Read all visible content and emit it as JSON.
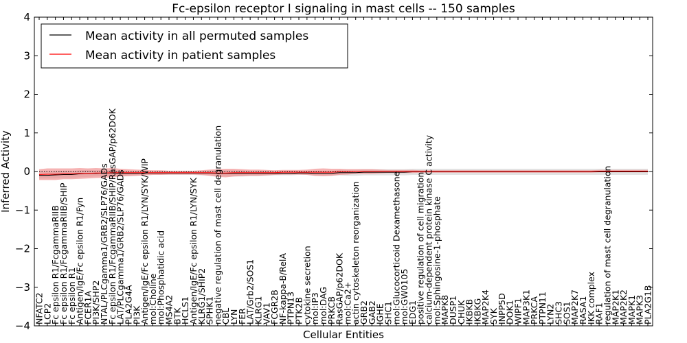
{
  "chart_data": {
    "type": "line",
    "title": "Fc-epsilon receptor I signaling in mast cells -- 150 samples",
    "xlabel": "Cellular Entities",
    "ylabel": "Inferred Activity",
    "ylim": [
      -4,
      4
    ],
    "yticks": [
      -4,
      -3,
      -2,
      -1,
      0,
      1,
      2,
      3,
      4
    ],
    "ytick_labels": [
      "−4",
      "−3",
      "−2",
      "−1",
      "0",
      "1",
      "2",
      "3",
      "4"
    ],
    "legend_position": "top-left",
    "categories": [
      "NFATC2",
      "LCP2",
      "Fc epsilon R1/FcgammaRIIB",
      "Fc epsilon R1/FcgammaRIIB/SHIP",
      "Fc epsilon R1",
      "Antigen/IgE/Fc epsilon R1/Fyn",
      "FCER1A",
      "PI3K/SHP2",
      "NTAL/PLCgamma1/GRB2/SLP76/GADs",
      "Fc epsilon R1/FcgammaRIIB/SHIP/RasGAP/p62DOK",
      "LAT/PLCgamma1/GRB2/SLP76/GADs",
      "PLA2G4A",
      "PI3K",
      "Antigen/IgE/Fc epsilon R1/LYN/SYK/WIP",
      "mol:Choline",
      "mol:Phosphatidic acid",
      "MS4A2",
      "BTK",
      "HCLS1",
      "Antigen/IgE/Fc epsilon R1/LYN/SYK",
      "KLRG1/SHIP2",
      "SPHK1",
      "negative regulation of mast cell degranulation",
      "CBL",
      "LYN",
      "FER",
      "LAT/Grb2/SOS1",
      "KLRG1",
      "VAV1",
      "FCGR2B",
      "NF-kappa-B/RelA",
      "PTPN13",
      "PTK2B",
      "cytokine secretion",
      "mol:IP3",
      "mol:DAG",
      "PRKCB",
      "RasGAP/p62DOK",
      "mol:Ca2+",
      "actin cytoskeleton reorganization",
      "GRB2",
      "GAB2",
      "IGHE",
      "SHC1",
      "mol:Glucocorticoid Dexamethasone",
      "mol:GW0105",
      "EDG1",
      "positive regulation of cell migration",
      "calcium-dependent protein kinase C activity",
      "mol:Sphingosine-1-phosphate",
      "MAPK8",
      "DUSP1",
      "CHUK",
      "IKBKB",
      "IKBKG",
      "MAP2K4",
      "SYK",
      "INPP5D",
      "DOK1",
      "WIPF1",
      "MAP3K1",
      "PRKCA",
      "PTPN11",
      "LYN2",
      "SHC3",
      "SOS1",
      "MAP2K7",
      "RASA1",
      "IKK complex",
      "RAF1",
      "regulation of mast cell degranulation",
      "MAP2K1",
      "MAP2K2",
      "MAPK1",
      "MAPK3",
      "PLA2G1B"
    ],
    "series": [
      {
        "name": "Mean activity in all permuted samples",
        "color": "#000000",
        "band_color": "#cccccc",
        "values": [
          -0.1,
          -0.1,
          -0.09,
          -0.08,
          -0.08,
          -0.06,
          -0.05,
          -0.05,
          -0.04,
          -0.04,
          -0.05,
          -0.05,
          -0.05,
          -0.04,
          -0.04,
          -0.04,
          -0.04,
          -0.04,
          -0.04,
          -0.04,
          -0.04,
          -0.04,
          -0.05,
          -0.05,
          -0.05,
          -0.05,
          -0.05,
          -0.05,
          -0.05,
          -0.05,
          -0.05,
          -0.05,
          -0.04,
          -0.04,
          -0.05,
          -0.05,
          -0.05,
          -0.03,
          -0.03,
          -0.03,
          -0.02,
          -0.02,
          -0.02,
          -0.02,
          -0.02,
          -0.02,
          -0.01,
          -0.01,
          -0.01,
          -0.01,
          -0.01,
          -0.01,
          -0.01,
          -0.01,
          -0.01,
          -0.01,
          -0.01,
          -0.01,
          -0.01,
          -0.01,
          -0.01,
          -0.01,
          -0.01,
          -0.01,
          -0.01,
          -0.01,
          -0.01,
          -0.01,
          -0.01,
          -0.01,
          -0.01,
          -0.01,
          -0.01,
          -0.01,
          -0.01,
          -0.01
        ],
        "band": [
          0.08,
          0.08,
          0.09,
          0.09,
          0.09,
          0.09,
          0.09,
          0.08,
          0.08,
          0.08,
          0.07,
          0.07,
          0.06,
          0.06,
          0.05,
          0.05,
          0.05,
          0.05,
          0.05,
          0.05,
          0.06,
          0.06,
          0.08,
          0.08,
          0.08,
          0.08,
          0.07,
          0.07,
          0.06,
          0.05,
          0.05,
          0.05,
          0.05,
          0.05,
          0.06,
          0.06,
          0.06,
          0.07,
          0.08,
          0.08,
          0.08,
          0.08,
          0.08,
          0.08,
          0.08,
          0.08,
          0.08,
          0.08,
          0.08,
          0.08,
          0.08,
          0.08,
          0.08,
          0.08,
          0.08,
          0.08,
          0.08,
          0.08,
          0.08,
          0.08,
          0.08,
          0.08,
          0.08,
          0.08,
          0.08,
          0.08,
          0.08,
          0.08,
          0.08,
          0.08,
          0.08,
          0.08,
          0.08,
          0.08,
          0.08,
          0.08
        ]
      },
      {
        "name": "Mean activity in patient samples",
        "color": "#ff0000",
        "band_color": "#f08080",
        "values": [
          -0.08,
          -0.07,
          -0.07,
          -0.06,
          -0.06,
          -0.05,
          -0.05,
          -0.04,
          -0.04,
          -0.03,
          -0.03,
          -0.03,
          -0.03,
          -0.03,
          -0.03,
          -0.03,
          -0.03,
          -0.03,
          -0.03,
          -0.03,
          -0.03,
          -0.03,
          -0.04,
          -0.04,
          -0.03,
          -0.03,
          -0.03,
          -0.03,
          -0.03,
          -0.03,
          -0.02,
          -0.02,
          -0.02,
          -0.02,
          -0.02,
          -0.02,
          -0.02,
          -0.01,
          -0.01,
          0.0,
          0.0,
          0.0,
          0.0,
          0.0,
          0.0,
          0.0,
          0.0,
          0.0,
          0.0,
          0.0,
          0.0,
          0.0,
          0.0,
          0.0,
          0.0,
          0.0,
          0.0,
          0.0,
          0.0,
          0.0,
          0.0,
          0.0,
          0.0,
          0.0,
          0.0,
          0.0,
          0.0,
          0.0,
          0.0,
          0.01,
          0.01,
          0.01,
          0.01,
          0.01,
          0.01,
          0.01
        ],
        "band": [
          0.14,
          0.15,
          0.15,
          0.14,
          0.14,
          0.14,
          0.13,
          0.13,
          0.12,
          0.12,
          0.1,
          0.09,
          0.08,
          0.07,
          0.06,
          0.06,
          0.05,
          0.05,
          0.05,
          0.05,
          0.06,
          0.08,
          0.1,
          0.11,
          0.1,
          0.09,
          0.08,
          0.08,
          0.07,
          0.06,
          0.06,
          0.06,
          0.06,
          0.07,
          0.09,
          0.1,
          0.09,
          0.08,
          0.07,
          0.06,
          0.06,
          0.06,
          0.05,
          0.04,
          0.04,
          0.04,
          0.04,
          0.03,
          0.03,
          0.03,
          0.03,
          0.03,
          0.03,
          0.03,
          0.03,
          0.03,
          0.03,
          0.03,
          0.03,
          0.03,
          0.03,
          0.03,
          0.03,
          0.03,
          0.03,
          0.03,
          0.03,
          0.03,
          0.03,
          0.03,
          0.03,
          0.03,
          0.03,
          0.03,
          0.03,
          0.03
        ]
      }
    ]
  }
}
